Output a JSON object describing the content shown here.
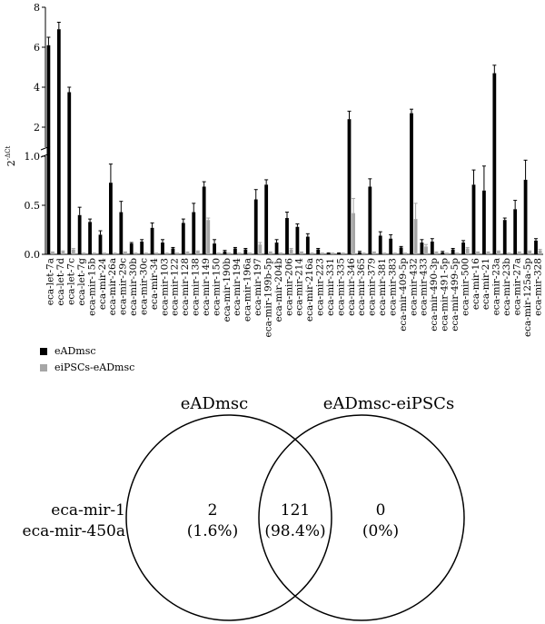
{
  "chart_data": [
    {
      "type": "bar",
      "ylabel": "2^-ΔCt",
      "ylabel_base": "2",
      "ylabel_exp": "-ΔCt",
      "ylim_lower": [
        0,
        1.0
      ],
      "ylim_upper": [
        1.0,
        8
      ],
      "yticks_lower": [
        "0.0",
        "0.5",
        "1.0"
      ],
      "yticks_upper": [
        "2",
        "4",
        "6",
        "8"
      ],
      "legend_position": "bottom-left",
      "colors": {
        "eADmsc": "#000000",
        "eiPSCs-eADmsc": "#a6a6a6"
      },
      "categories": [
        "eca-let-7a",
        "eca-let-7d",
        "eca-let-7c",
        "eca-let-7g",
        "eca-mir-15b",
        "eca-mir-24",
        "eca-mir-26a",
        "eca-mir-29c",
        "eca-mir-30b",
        "eca-mir-30c",
        "eca-mir-34",
        "eca-mir-103",
        "eca-mir-122",
        "eca-mir-128",
        "eca-mir-138",
        "eca-mir-149",
        "eca-mir-150",
        "eca-mir-190b",
        "eca-mir-194",
        "eca-mir-196a",
        "eca-mir-197",
        "eca-mir-199b-5p",
        "eca-mir-204b",
        "eca-mir-206",
        "eca-mir-214",
        "eca-mir-216a",
        "eca-mir-223",
        "eca-mir-331",
        "eca-mir-335",
        "eca-mir-346",
        "eca-mir-365",
        "eca-mir-379",
        "eca-mir-381",
        "eca-mir-383",
        "eca-mir-409-5p",
        "eca-mir-432",
        "eca-mir-433",
        "eca-mir-490-3p",
        "eca-mir-491-5p",
        "eca-mir-499-5p",
        "eca-mir-500",
        "eca-mir-16",
        "eca-mir-21",
        "eca-mir-23a",
        "eca-mir-23b",
        "eca-mir-27a",
        "eca-mir-125a-5p",
        "eca-mir-328"
      ],
      "series": [
        {
          "name": "eADmsc",
          "values": [
            6.1,
            6.9,
            3.75,
            0.4,
            0.33,
            0.2,
            0.73,
            0.43,
            0.11,
            0.13,
            0.27,
            0.12,
            0.06,
            0.32,
            0.43,
            0.69,
            0.11,
            0.03,
            0.06,
            0.05,
            0.56,
            0.71,
            0.12,
            0.37,
            0.28,
            0.18,
            0.05,
            0.01,
            0.01,
            2.4,
            0.02,
            0.69,
            0.19,
            0.16,
            0.07,
            2.7,
            0.12,
            0.13,
            0.02,
            0.05,
            0.12,
            0.71,
            0.65,
            4.7,
            0.35,
            0.46,
            0.76,
            0.14
          ],
          "errors": [
            0.4,
            0.35,
            0.25,
            0.08,
            0.03,
            0.04,
            0.19,
            0.11,
            0.01,
            0.02,
            0.05,
            0.03,
            0.01,
            0.04,
            0.09,
            0.05,
            0.04,
            0.01,
            0.01,
            0.01,
            0.1,
            0.05,
            0.03,
            0.06,
            0.03,
            0.03,
            0.01,
            0.005,
            0.005,
            0.4,
            0.01,
            0.08,
            0.04,
            0.04,
            0.01,
            0.2,
            0.03,
            0.03,
            0.01,
            0.01,
            0.02,
            0.15,
            0.25,
            0.4,
            0.02,
            0.09,
            0.2,
            0.02
          ]
        },
        {
          "name": "eiPSCs-eADmsc",
          "values": [
            0.02,
            0.03,
            0.05,
            0.01,
            0.01,
            0.01,
            0.01,
            0.02,
            0.01,
            0.01,
            0.01,
            0.01,
            0.01,
            0.02,
            0.03,
            0.35,
            0.01,
            0.01,
            0.01,
            0.01,
            0.1,
            0.02,
            0.01,
            0.05,
            0.02,
            0.01,
            0.01,
            0.01,
            0.01,
            0.42,
            0.01,
            0.02,
            0.01,
            0.01,
            0.01,
            0.36,
            0.08,
            0.02,
            0.01,
            0.01,
            0.06,
            0.02,
            0.02,
            0.03,
            0.01,
            0.02,
            0.03,
            0.04
          ],
          "errors": [
            0.005,
            0.005,
            0.01,
            0.003,
            0.003,
            0.003,
            0.003,
            0.005,
            0.003,
            0.003,
            0.003,
            0.003,
            0.003,
            0.005,
            0.005,
            0.02,
            0.003,
            0.003,
            0.003,
            0.003,
            0.02,
            0.005,
            0.003,
            0.01,
            0.005,
            0.003,
            0.003,
            0.003,
            0.003,
            0.15,
            0.003,
            0.005,
            0.003,
            0.003,
            0.003,
            0.16,
            0.02,
            0.005,
            0.003,
            0.003,
            0.01,
            0.005,
            0.005,
            0.005,
            0.003,
            0.005,
            0.005,
            0.01
          ]
        }
      ]
    },
    {
      "type": "venn",
      "sets": [
        {
          "name": "eADmsc",
          "only_count": "2",
          "only_percent": "(1.6%)"
        },
        {
          "name": "eADmsc-eiPSCs",
          "only_count": "0",
          "only_percent": "(0%)"
        }
      ],
      "intersection": {
        "count": "121",
        "percent": "(98.4%)"
      },
      "annotation_lines": [
        "eca-mir-1",
        "eca-mir-450a"
      ]
    }
  ]
}
